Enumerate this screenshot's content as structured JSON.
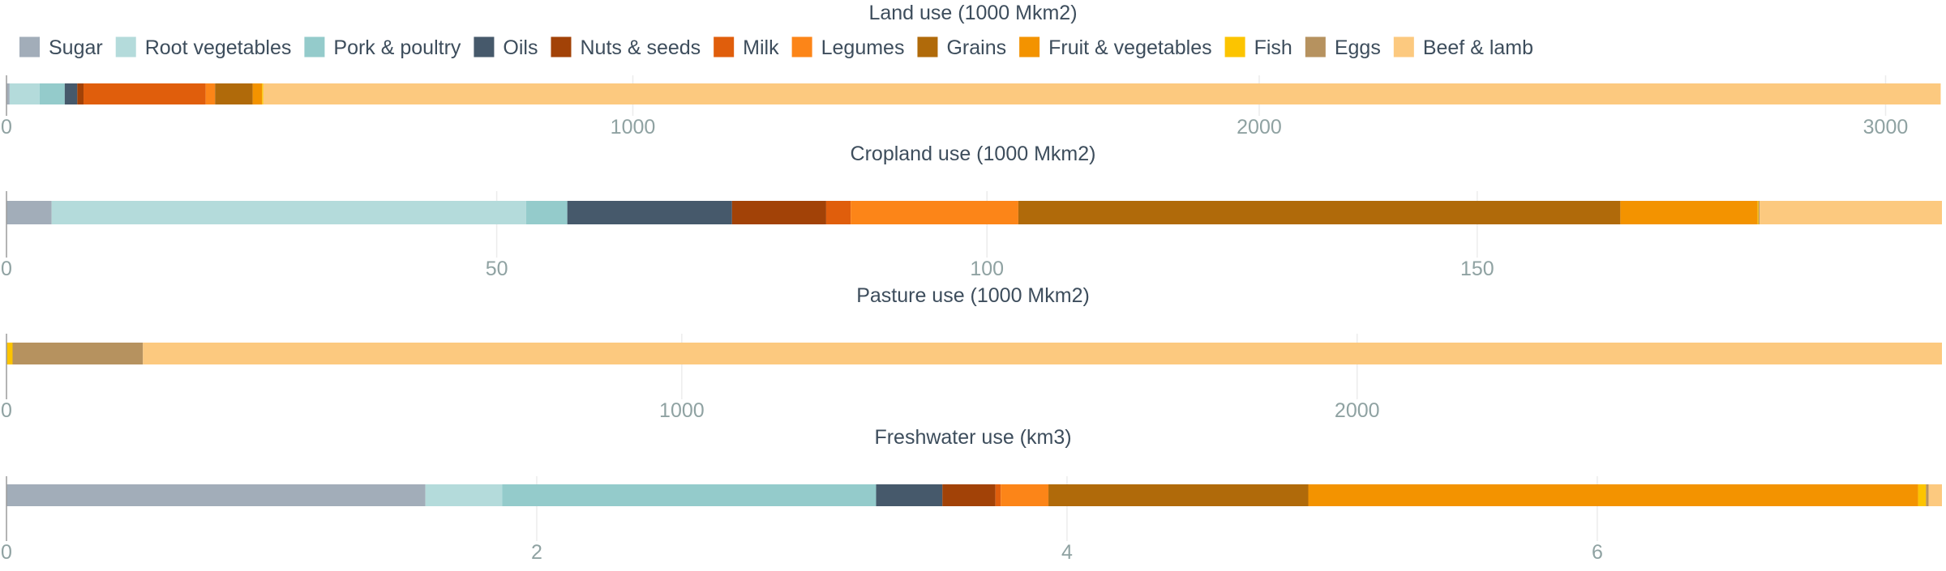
{
  "legend": [
    {
      "name": "Sugar",
      "color": "#a2adb9"
    },
    {
      "name": "Root vegetables",
      "color": "#b4dbdb"
    },
    {
      "name": "Pork & poultry",
      "color": "#94cbcb"
    },
    {
      "name": "Oils",
      "color": "#46596b"
    },
    {
      "name": "Nuts & seeds",
      "color": "#a24207"
    },
    {
      "name": "Milk",
      "color": "#e05e0c"
    },
    {
      "name": "Legumes",
      "color": "#fc8518"
    },
    {
      "name": "Grains",
      "color": "#b06a0a"
    },
    {
      "name": "Fruit & vegetables",
      "color": "#f39300"
    },
    {
      "name": "Fish",
      "color": "#fcc400"
    },
    {
      "name": "Eggs",
      "color": "#b6925f"
    },
    {
      "name": "Beef & lamb",
      "color": "#fcc97f"
    }
  ],
  "chart_data": [
    {
      "type": "bar",
      "orientation": "horizontal-stacked",
      "title": "Land use (1000 Mkm2)",
      "xlim": [
        0,
        3090
      ],
      "ticks": [
        0,
        1000,
        2000,
        3000
      ],
      "grid": true,
      "series": [
        {
          "name": "Sugar",
          "value": 5
        },
        {
          "name": "Root vegetables",
          "value": 48
        },
        {
          "name": "Pork & poultry",
          "value": 40
        },
        {
          "name": "Oils",
          "value": 20
        },
        {
          "name": "Nuts & seeds",
          "value": 10
        },
        {
          "name": "Milk",
          "value": 195
        },
        {
          "name": "Legumes",
          "value": 15
        },
        {
          "name": "Grains",
          "value": 60
        },
        {
          "name": "Fruit & vegetables",
          "value": 15
        },
        {
          "name": "Fish",
          "value": 2
        },
        {
          "name": "Eggs",
          "value": 0
        },
        {
          "name": "Beef & lamb",
          "value": 2678
        }
      ]
    },
    {
      "type": "bar",
      "orientation": "horizontal-stacked",
      "title": "Cropland use (1000 Mkm2)",
      "xlim": [
        0,
        197.4
      ],
      "ticks": [
        0,
        50,
        100,
        150
      ],
      "grid": true,
      "series": [
        {
          "name": "Sugar",
          "value": 4.6
        },
        {
          "name": "Root vegetables",
          "value": 48.4
        },
        {
          "name": "Pork & poultry",
          "value": 4.2
        },
        {
          "name": "Oils",
          "value": 16.8
        },
        {
          "name": "Nuts & seeds",
          "value": 9.6
        },
        {
          "name": "Milk",
          "value": 2.5
        },
        {
          "name": "Legumes",
          "value": 17.1
        },
        {
          "name": "Grains",
          "value": 61.4
        },
        {
          "name": "Fruit & vegetables",
          "value": 14
        },
        {
          "name": "Fish",
          "value": 0.1
        },
        {
          "name": "Eggs",
          "value": 0.1
        },
        {
          "name": "Beef & lamb",
          "value": 18.6
        }
      ]
    },
    {
      "type": "bar",
      "orientation": "horizontal-stacked",
      "title": "Pasture use (1000 Mkm2)",
      "xlim": [
        0,
        2866
      ],
      "ticks": [
        0,
        1000,
        2000
      ],
      "grid": true,
      "series": [
        {
          "name": "Sugar",
          "value": 0
        },
        {
          "name": "Root vegetables",
          "value": 0
        },
        {
          "name": "Pork & poultry",
          "value": 0
        },
        {
          "name": "Oils",
          "value": 0
        },
        {
          "name": "Nuts & seeds",
          "value": 0
        },
        {
          "name": "Milk",
          "value": 0
        },
        {
          "name": "Legumes",
          "value": 0
        },
        {
          "name": "Grains",
          "value": 0
        },
        {
          "name": "Fruit & vegetables",
          "value": 0
        },
        {
          "name": "Fish",
          "value": 9
        },
        {
          "name": "Eggs",
          "value": 193
        },
        {
          "name": "Beef & lamb",
          "value": 2664
        }
      ]
    },
    {
      "type": "bar",
      "orientation": "horizontal-stacked",
      "title": "Freshwater use (km3)",
      "xlim": [
        0,
        7.3
      ],
      "ticks": [
        0,
        2,
        4,
        6
      ],
      "grid": true,
      "series": [
        {
          "name": "Sugar",
          "value": 1.58
        },
        {
          "name": "Root vegetables",
          "value": 0.29
        },
        {
          "name": "Pork & poultry",
          "value": 1.41
        },
        {
          "name": "Oils",
          "value": 0.25
        },
        {
          "name": "Nuts & seeds",
          "value": 0.2
        },
        {
          "name": "Milk",
          "value": 0.02
        },
        {
          "name": "Legumes",
          "value": 0.18
        },
        {
          "name": "Grains",
          "value": 0.98
        },
        {
          "name": "Fruit & vegetables",
          "value": 2.3
        },
        {
          "name": "Fish",
          "value": 0.03
        },
        {
          "name": "Eggs",
          "value": 0.01
        },
        {
          "name": "Beef & lamb",
          "value": 0.05
        }
      ]
    }
  ]
}
